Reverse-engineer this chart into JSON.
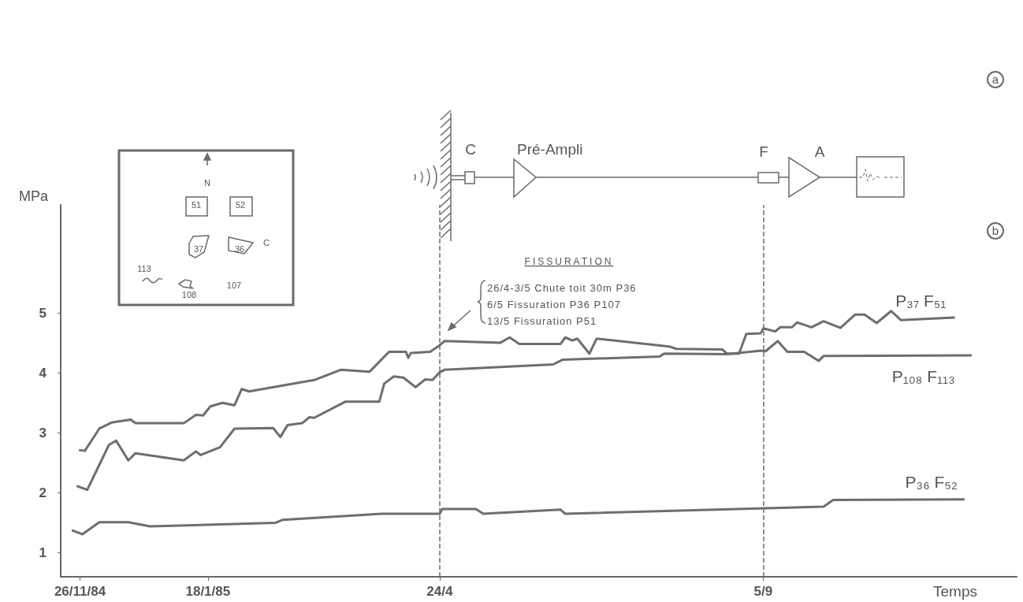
{
  "chart_data": {
    "type": "line",
    "ylabel": "MPa",
    "xlabel": "Temps",
    "xlim": [
      "1984-11-18",
      "1985-12-19"
    ],
    "ylim": [
      0.6,
      6.8
    ],
    "yticks": [
      1,
      2,
      3,
      4,
      5
    ],
    "xticks": [
      {
        "value": "1984-11-26",
        "label": "26/11/84"
      },
      {
        "value": "1985-01-18",
        "label": "18/1/85"
      },
      {
        "value": "1985-04-24",
        "label": "24/4"
      },
      {
        "value": "1985-09-05",
        "label": "5/9"
      }
    ],
    "marker": "none",
    "line_style": "solid",
    "series": [
      {
        "name": "P₃₇ F₅₁",
        "color": "#6e6e6e",
        "x": [
          "1984-11-26",
          "1984-11-28",
          "1984-12-04",
          "1984-12-09",
          "1984-12-17",
          "1984-12-19",
          "1985-01-08",
          "1985-01-13",
          "1985-01-16",
          "1985-01-19",
          "1985-01-24",
          "1985-01-29",
          "1985-02-01",
          "1985-02-04",
          "1985-03-03",
          "1985-03-14",
          "1985-03-26",
          "1985-04-03",
          "1985-04-10",
          "1985-04-11",
          "1985-04-12",
          "1985-04-20",
          "1985-04-24",
          "1985-04-26",
          "1985-05-19",
          "1985-05-23",
          "1985-05-27",
          "1985-06-13",
          "1985-06-15",
          "1985-06-18",
          "1985-06-20",
          "1985-06-25",
          "1985-06-28",
          "1985-07-28",
          "1985-07-31",
          "1985-08-19",
          "1985-08-21",
          "1985-08-26",
          "1985-08-29",
          "1985-09-04",
          "1985-09-05",
          "1985-09-10",
          "1985-09-12",
          "1985-09-17",
          "1985-09-19",
          "1985-09-25",
          "1985-09-30",
          "1985-10-07",
          "1985-10-13",
          "1985-10-17",
          "1985-10-22",
          "1985-10-28",
          "1985-11-01",
          "1985-11-23"
        ],
        "values": [
          2.71,
          2.7,
          3.07,
          3.17,
          3.22,
          3.16,
          3.16,
          3.3,
          3.29,
          3.44,
          3.5,
          3.46,
          3.73,
          3.69,
          3.88,
          4.05,
          4.02,
          4.35,
          4.35,
          4.25,
          4.33,
          4.35,
          4.46,
          4.53,
          4.5,
          4.59,
          4.48,
          4.48,
          4.59,
          4.54,
          4.57,
          4.32,
          4.57,
          4.44,
          4.4,
          4.39,
          4.32,
          4.32,
          4.65,
          4.66,
          4.74,
          4.69,
          4.76,
          4.76,
          4.84,
          4.76,
          4.86,
          4.75,
          4.97,
          4.97,
          4.83,
          5.03,
          4.88,
          4.92
        ]
      },
      {
        "name": "P₁₀₈ F₁₁₃",
        "color": "#6e6e6e",
        "x": [
          "1984-11-25",
          "1984-11-29",
          "1984-12-08",
          "1984-12-11",
          "1984-12-16",
          "1984-12-19",
          "1985-01-08",
          "1985-01-13",
          "1985-01-15",
          "1985-01-23",
          "1985-01-29",
          "1985-02-14",
          "1985-02-17",
          "1985-02-20",
          "1985-02-26",
          "1985-03-01",
          "1985-03-03",
          "1985-03-16",
          "1985-03-30",
          "1985-04-01",
          "1985-04-05",
          "1985-04-09",
          "1985-04-14",
          "1985-04-18",
          "1985-04-21",
          "1985-04-24",
          "1985-04-26",
          "1985-06-10",
          "1985-06-14",
          "1985-07-24",
          "1985-07-26",
          "1985-08-21",
          "1985-09-04",
          "1985-09-06",
          "1985-09-11",
          "1985-09-15",
          "1985-09-22",
          "1985-09-28",
          "1985-09-30",
          "1985-11-30"
        ],
        "values": [
          2.11,
          2.05,
          2.8,
          2.87,
          2.54,
          2.66,
          2.54,
          2.69,
          2.63,
          2.76,
          3.07,
          3.08,
          2.93,
          3.13,
          3.16,
          3.26,
          3.25,
          3.52,
          3.52,
          3.82,
          3.94,
          3.92,
          3.76,
          3.89,
          3.88,
          4.01,
          4.05,
          4.14,
          4.22,
          4.27,
          4.32,
          4.31,
          4.37,
          4.36,
          4.53,
          4.35,
          4.35,
          4.2,
          4.28,
          4.29
        ]
      },
      {
        "name": "P₃₆ F₅₂",
        "color": "#6e6e6e",
        "x": [
          "1984-11-23",
          "1984-11-27",
          "1984-12-04",
          "1984-12-16",
          "1984-12-25",
          "1985-02-15",
          "1985-02-18",
          "1985-03-31",
          "1985-04-24",
          "1985-04-25",
          "1985-05-09",
          "1985-05-12",
          "1985-06-13",
          "1985-06-15",
          "1985-09-30",
          "1985-10-04",
          "1985-11-27"
        ],
        "values": [
          1.37,
          1.31,
          1.51,
          1.51,
          1.44,
          1.5,
          1.55,
          1.65,
          1.65,
          1.73,
          1.73,
          1.65,
          1.72,
          1.65,
          1.77,
          1.88,
          1.89
        ]
      }
    ],
    "ref_lines": [
      {
        "axis": "x",
        "value": "1985-04-24",
        "color": "#6e6e6e",
        "line_style": "dashed"
      },
      {
        "axis": "x",
        "value": "1985-09-05",
        "color": "#6e6e6e",
        "line_style": "dashed"
      }
    ],
    "annotations": [
      "FISSURATION",
      "26/4-3/5 Chute toit 30m P36",
      "6/5 Fissuration P36 P107",
      "13/5 Fissuration P51",
      "a",
      "b",
      "C",
      "Pré-Ampli",
      "F",
      "A",
      "N",
      "51",
      "52",
      "37",
      "36",
      "C",
      "113",
      "108",
      "107"
    ]
  }
}
